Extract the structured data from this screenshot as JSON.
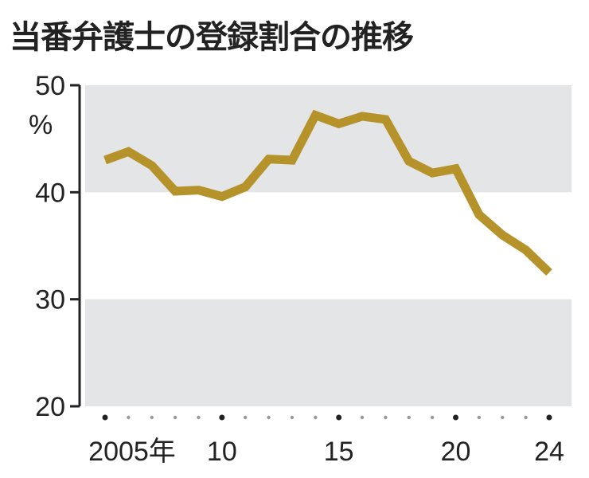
{
  "chart_data": {
    "type": "line",
    "title": "当番弁護士の登録割合の推移",
    "ylabel": "%",
    "xlabel": "",
    "ylim": [
      20,
      50
    ],
    "xlim": [
      2005,
      2024
    ],
    "yticks": [
      "50",
      "40",
      "30",
      "20"
    ],
    "ytick_values": [
      50,
      40,
      30,
      20
    ],
    "xticks": [
      "2005年",
      "10",
      "15",
      "20",
      "24"
    ],
    "xtick_values": [
      2005,
      2010,
      2015,
      2020,
      2024
    ],
    "grid": "alternating horizontal bands",
    "series": [
      {
        "name": "登録割合",
        "color": "#b5932a",
        "x": [
          2005,
          2006,
          2007,
          2008,
          2009,
          2010,
          2011,
          2012,
          2013,
          2014,
          2015,
          2016,
          2017,
          2018,
          2019,
          2020,
          2021,
          2022,
          2023,
          2024
        ],
        "values": [
          43.0,
          43.8,
          42.5,
          40.1,
          40.2,
          39.6,
          40.5,
          43.1,
          43.0,
          47.2,
          46.4,
          47.1,
          46.8,
          42.9,
          41.8,
          42.2,
          37.9,
          36.0,
          34.6,
          32.5
        ]
      }
    ],
    "band_color": "#e3e5e6"
  }
}
